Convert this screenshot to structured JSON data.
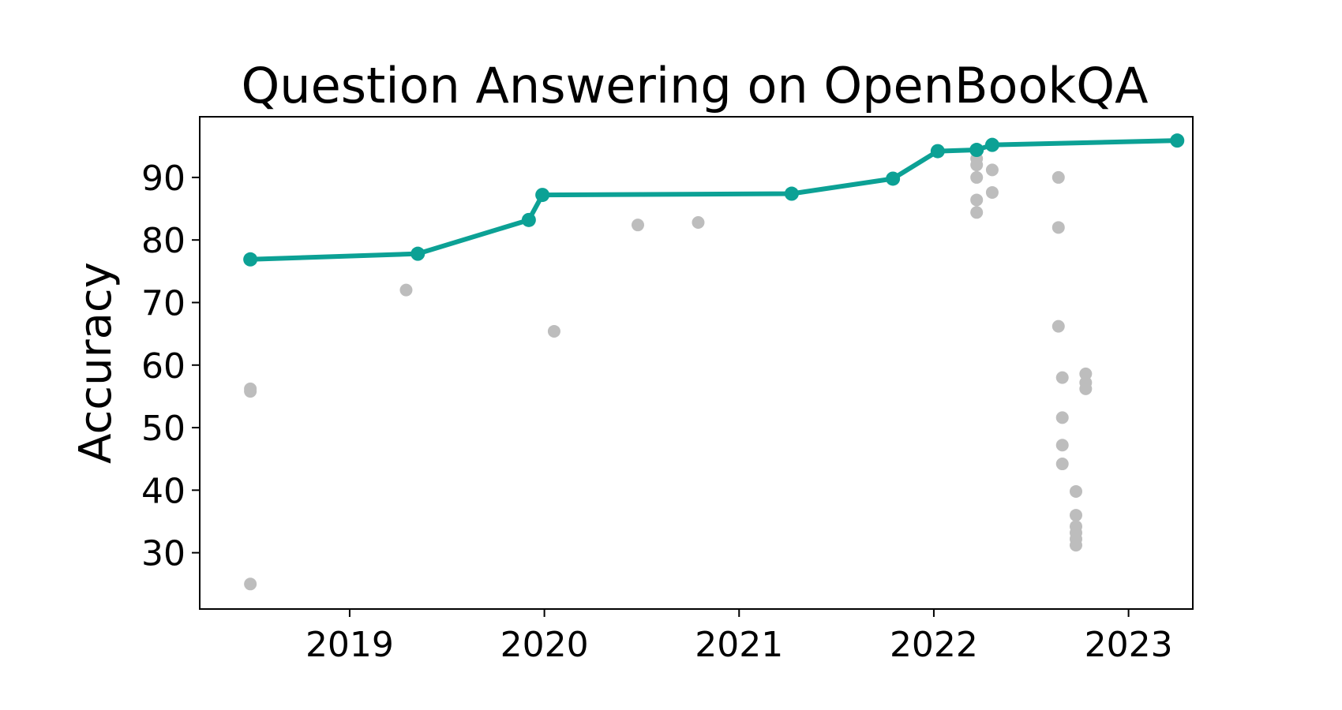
{
  "chart_data": {
    "type": "scatter",
    "title": "Question Answering on OpenBookQA",
    "xlabel": "",
    "ylabel": "Accuracy",
    "xlim": [
      2018.23,
      2023.33
    ],
    "ylim": [
      21,
      99.7
    ],
    "xticks": [
      2019,
      2020,
      2021,
      2022,
      2023
    ],
    "yticks": [
      30,
      40,
      50,
      60,
      70,
      80,
      90
    ],
    "grid": false,
    "colors": {
      "frontier": "#0ca195",
      "other": "#bdbdbd"
    },
    "series": [
      {
        "role": "state-of-the-art frontier",
        "marker_line": true,
        "points": [
          [
            2018.49,
            76.9
          ],
          [
            2019.35,
            77.8
          ],
          [
            2019.92,
            83.2
          ],
          [
            2019.99,
            87.2
          ],
          [
            2021.27,
            87.4
          ],
          [
            2021.79,
            89.8
          ],
          [
            2022.02,
            94.2
          ],
          [
            2022.22,
            94.4
          ],
          [
            2022.3,
            95.2
          ],
          [
            2023.25,
            95.9
          ]
        ]
      },
      {
        "role": "other results",
        "marker_line": false,
        "points": [
          [
            2018.49,
            56.2
          ],
          [
            2018.49,
            55.8
          ],
          [
            2018.49,
            25.0
          ],
          [
            2019.29,
            72.0
          ],
          [
            2020.05,
            65.4
          ],
          [
            2020.48,
            82.4
          ],
          [
            2020.79,
            82.8
          ],
          [
            2022.22,
            93.0
          ],
          [
            2022.22,
            92.0
          ],
          [
            2022.22,
            90.0
          ],
          [
            2022.22,
            86.4
          ],
          [
            2022.22,
            84.4
          ],
          [
            2022.3,
            91.2
          ],
          [
            2022.3,
            87.6
          ],
          [
            2022.64,
            90.0
          ],
          [
            2022.64,
            82.0
          ],
          [
            2022.64,
            66.2
          ],
          [
            2022.66,
            58.0
          ],
          [
            2022.66,
            51.6
          ],
          [
            2022.66,
            47.2
          ],
          [
            2022.66,
            44.2
          ],
          [
            2022.73,
            39.8
          ],
          [
            2022.73,
            36.0
          ],
          [
            2022.73,
            34.2
          ],
          [
            2022.73,
            33.2
          ],
          [
            2022.73,
            32.2
          ],
          [
            2022.73,
            31.2
          ],
          [
            2022.78,
            58.6
          ],
          [
            2022.78,
            57.2
          ],
          [
            2022.78,
            56.2
          ]
        ]
      }
    ]
  }
}
